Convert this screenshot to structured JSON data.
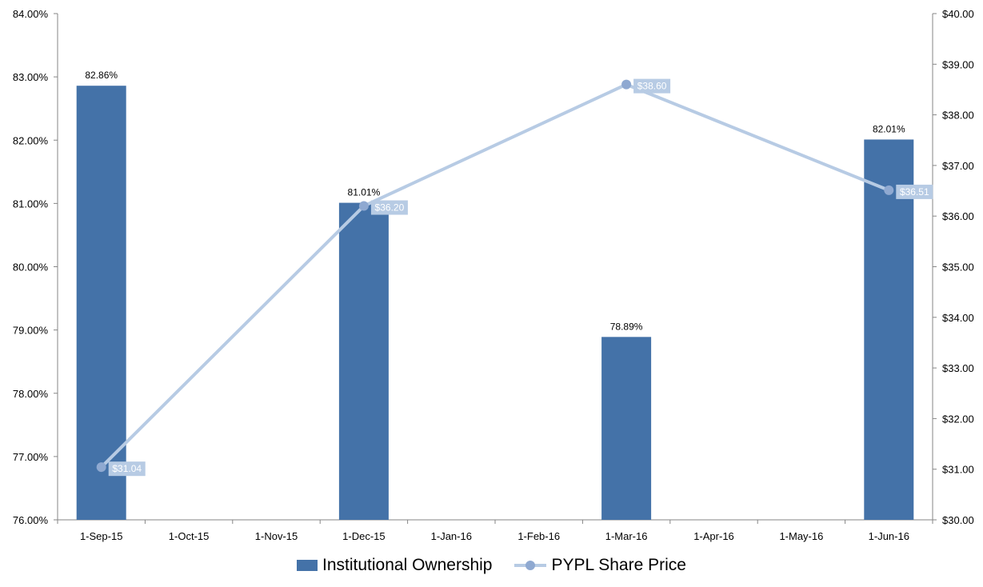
{
  "chart_data": {
    "type": "bar",
    "categories": [
      "1-Sep-15",
      "1-Oct-15",
      "1-Nov-15",
      "1-Dec-15",
      "1-Jan-16",
      "1-Feb-16",
      "1-Mar-16",
      "1-Apr-16",
      "1-May-16",
      "1-Jun-16"
    ],
    "left_axis": {
      "ylim": [
        76,
        84
      ],
      "ticks": [
        76,
        77,
        78,
        79,
        80,
        81,
        82,
        83,
        84
      ],
      "tick_labels": [
        "76.00%",
        "77.00%",
        "78.00%",
        "79.00%",
        "80.00%",
        "81.00%",
        "82.00%",
        "83.00%",
        "84.00%"
      ]
    },
    "right_axis": {
      "ylim": [
        30,
        40
      ],
      "ticks": [
        30,
        31,
        32,
        33,
        34,
        35,
        36,
        37,
        38,
        39,
        40
      ],
      "tick_labels": [
        "$30.00",
        "$31.00",
        "$32.00",
        "$33.00",
        "$34.00",
        "$35.00",
        "$36.00",
        "$37.00",
        "$38.00",
        "$39.00",
        "$40.00"
      ]
    },
    "series": [
      {
        "name": "Institutional Ownership",
        "type": "bar",
        "axis": "left",
        "color": "#4472a8",
        "values": [
          82.86,
          null,
          null,
          81.01,
          null,
          null,
          78.89,
          null,
          null,
          82.01
        ],
        "labels": [
          "82.86%",
          null,
          null,
          "81.01%",
          null,
          null,
          "78.89%",
          null,
          null,
          "82.01%"
        ]
      },
      {
        "name": "PYPL Share Price",
        "type": "line",
        "axis": "right",
        "color": "#b7cbe4",
        "marker_color": "#8fa9d1",
        "values": [
          31.04,
          null,
          null,
          36.2,
          null,
          null,
          38.6,
          null,
          null,
          36.51
        ],
        "labels": [
          "$31.04",
          null,
          null,
          "$36.20",
          null,
          null,
          "$38.60",
          null,
          null,
          "$36.51"
        ]
      }
    ],
    "legend_position": "bottom",
    "grid": false
  }
}
